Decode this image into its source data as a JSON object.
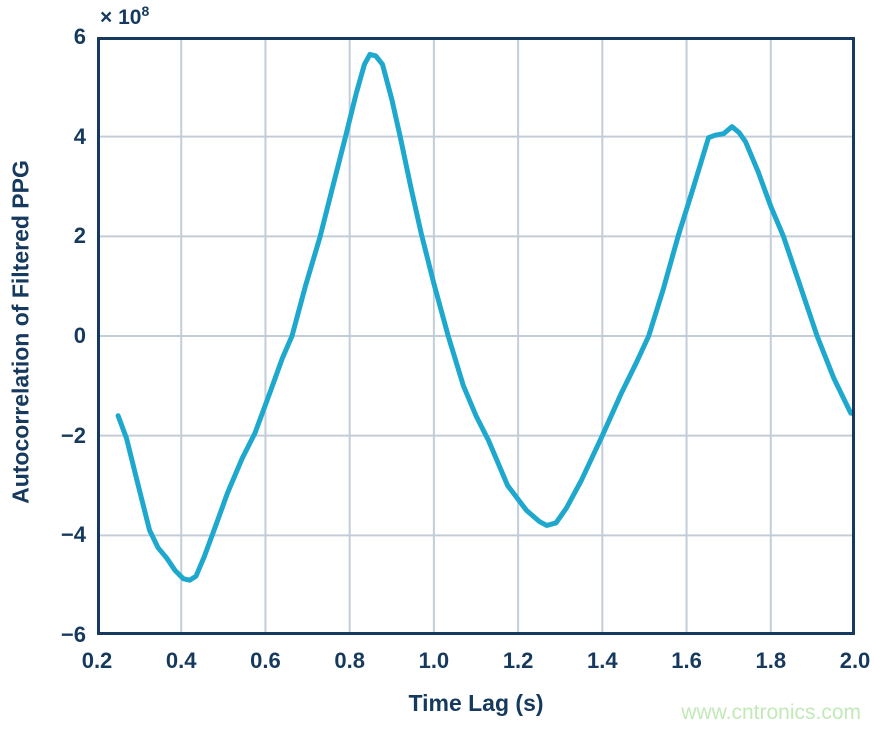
{
  "colors": {
    "background": "#FFFFFF",
    "axis": "#16395E",
    "grid": "#C3CDD8"
  },
  "watermark": {
    "text": "www.cntronics.com",
    "color": "#C2E9B8"
  },
  "chart_data": {
    "type": "line",
    "title": "",
    "xlabel": "Time Lag (s)",
    "ylabel": "Autocorrelation of Filtered PPG",
    "offset_text": {
      "base": "× 10",
      "exponent": "8"
    },
    "y_unit_multiplier": 100000000,
    "xlim": [
      0.2,
      2.0
    ],
    "ylim": [
      -6,
      6
    ],
    "grid": true,
    "legend": "none",
    "x_ticks": [
      {
        "value": 0.2,
        "label": "0.2"
      },
      {
        "value": 0.4,
        "label": "0.4"
      },
      {
        "value": 0.6,
        "label": "0.6"
      },
      {
        "value": 0.8,
        "label": "0.8"
      },
      {
        "value": 1.0,
        "label": "1.0"
      },
      {
        "value": 1.2,
        "label": "1.2"
      },
      {
        "value": 1.4,
        "label": "1.4"
      },
      {
        "value": 1.6,
        "label": "1.6"
      },
      {
        "value": 1.8,
        "label": "1.8"
      },
      {
        "value": 2.0,
        "label": "2.0"
      }
    ],
    "y_ticks": [
      {
        "value": 6,
        "label": "6"
      },
      {
        "value": 4,
        "label": "4"
      },
      {
        "value": 2,
        "label": "2"
      },
      {
        "value": 0,
        "label": "0"
      },
      {
        "value": -2,
        "label": "−2"
      },
      {
        "value": -4,
        "label": "−4"
      },
      {
        "value": -6,
        "label": "−6"
      }
    ],
    "series": [
      {
        "name": "autocorrelation",
        "color": "#1FA8CE",
        "points": [
          [
            0.25,
            -1.6
          ],
          [
            0.27,
            -2.05
          ],
          [
            0.295,
            -2.9
          ],
          [
            0.325,
            -3.9
          ],
          [
            0.345,
            -4.25
          ],
          [
            0.365,
            -4.45
          ],
          [
            0.385,
            -4.7
          ],
          [
            0.405,
            -4.87
          ],
          [
            0.42,
            -4.9
          ],
          [
            0.435,
            -4.82
          ],
          [
            0.455,
            -4.42
          ],
          [
            0.48,
            -3.85
          ],
          [
            0.51,
            -3.15
          ],
          [
            0.545,
            -2.45
          ],
          [
            0.575,
            -1.95
          ],
          [
            0.61,
            -1.15
          ],
          [
            0.64,
            -0.45
          ],
          [
            0.663,
            0.0
          ],
          [
            0.695,
            1.0
          ],
          [
            0.73,
            2.0
          ],
          [
            0.76,
            3.0
          ],
          [
            0.79,
            4.0
          ],
          [
            0.815,
            4.85
          ],
          [
            0.835,
            5.45
          ],
          [
            0.848,
            5.65
          ],
          [
            0.862,
            5.62
          ],
          [
            0.878,
            5.45
          ],
          [
            0.9,
            4.75
          ],
          [
            0.92,
            4.0
          ],
          [
            0.945,
            3.0
          ],
          [
            0.97,
            2.05
          ],
          [
            1.0,
            1.05
          ],
          [
            1.034,
            0.0
          ],
          [
            1.07,
            -1.0
          ],
          [
            1.1,
            -1.6
          ],
          [
            1.13,
            -2.1
          ],
          [
            1.175,
            -3.0
          ],
          [
            1.22,
            -3.5
          ],
          [
            1.25,
            -3.72
          ],
          [
            1.268,
            -3.8
          ],
          [
            1.29,
            -3.75
          ],
          [
            1.315,
            -3.45
          ],
          [
            1.35,
            -2.9
          ],
          [
            1.4,
            -2.0
          ],
          [
            1.445,
            -1.15
          ],
          [
            1.48,
            -0.55
          ],
          [
            1.51,
            0.0
          ],
          [
            1.545,
            0.95
          ],
          [
            1.58,
            2.0
          ],
          [
            1.615,
            2.95
          ],
          [
            1.652,
            3.98
          ],
          [
            1.668,
            4.03
          ],
          [
            1.688,
            4.06
          ],
          [
            1.708,
            4.2
          ],
          [
            1.725,
            4.08
          ],
          [
            1.74,
            3.9
          ],
          [
            1.77,
            3.3
          ],
          [
            1.8,
            2.6
          ],
          [
            1.83,
            2.0
          ],
          [
            1.87,
            1.0
          ],
          [
            1.91,
            0.0
          ],
          [
            1.95,
            -0.85
          ],
          [
            1.99,
            -1.55
          ]
        ]
      }
    ]
  }
}
